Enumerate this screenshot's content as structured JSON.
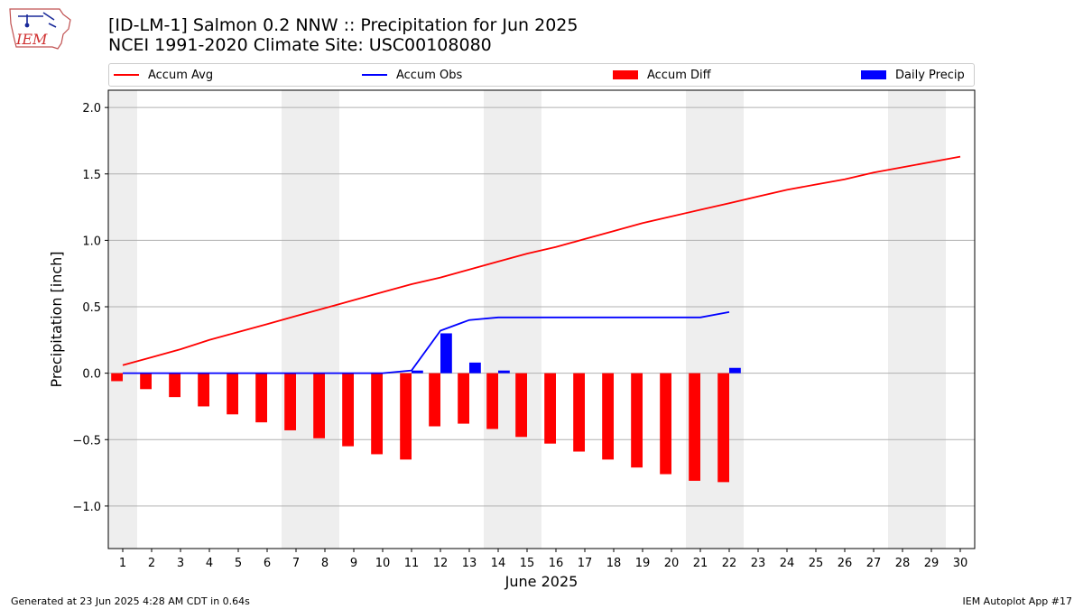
{
  "header": {
    "title_line1": "[ID-LM-1] Salmon 0.2 NNW :: Precipitation for Jun 2025",
    "title_line2": "NCEI 1991-2020 Climate Site: USC00108080",
    "logo_text": "IEM"
  },
  "footer": {
    "left": "Generated at 23 Jun 2025 4:28 AM CDT in 0.64s",
    "right": "IEM Autoplot App #17"
  },
  "colors": {
    "accum_avg": "#ff0000",
    "accum_obs": "#0000ff",
    "accum_diff": "#ff0000",
    "daily_precip": "#0000ff",
    "weekend_shade": "#eeeeee",
    "grid": "#b0b0b0"
  },
  "chart_data": {
    "type": "bar",
    "xlabel": "June 2025",
    "ylabel": "Precipitation [inch]",
    "ylim": [
      -1.32,
      2.13
    ],
    "xlim": [
      0.5,
      30.5
    ],
    "yticks": [
      -1.0,
      -0.5,
      0.0,
      0.5,
      1.0,
      1.5,
      2.0
    ],
    "ytick_labels": [
      "−1.0",
      "−0.5",
      "0.0",
      "0.5",
      "1.0",
      "1.5",
      "2.0"
    ],
    "x": [
      1,
      2,
      3,
      4,
      5,
      6,
      7,
      8,
      9,
      10,
      11,
      12,
      13,
      14,
      15,
      16,
      17,
      18,
      19,
      20,
      21,
      22,
      23,
      24,
      25,
      26,
      27,
      28,
      29,
      30
    ],
    "grid": "horizontal",
    "legend_placement": "top",
    "weekend_ranges": [
      [
        0.5,
        1.5
      ],
      [
        6.5,
        8.5
      ],
      [
        13.5,
        15.5
      ],
      [
        20.5,
        22.5
      ],
      [
        27.5,
        29.5
      ]
    ],
    "series": [
      {
        "name": "Accum Avg",
        "kind": "line",
        "x": [
          1,
          2,
          3,
          4,
          5,
          6,
          7,
          8,
          9,
          10,
          11,
          12,
          13,
          14,
          15,
          16,
          17,
          18,
          19,
          20,
          21,
          22,
          23,
          24,
          25,
          26,
          27,
          28,
          29,
          30
        ],
        "values": [
          0.06,
          0.12,
          0.18,
          0.25,
          0.31,
          0.37,
          0.43,
          0.49,
          0.55,
          0.61,
          0.67,
          0.72,
          0.78,
          0.84,
          0.9,
          0.95,
          1.01,
          1.07,
          1.13,
          1.18,
          1.23,
          1.28,
          1.33,
          1.38,
          1.42,
          1.46,
          1.51,
          1.55,
          1.59,
          1.63
        ]
      },
      {
        "name": "Accum Obs",
        "kind": "line",
        "x": [
          1,
          2,
          3,
          4,
          5,
          6,
          7,
          8,
          9,
          10,
          11,
          12,
          13,
          14,
          15,
          16,
          17,
          18,
          19,
          20,
          21,
          22
        ],
        "values": [
          0.0,
          0.0,
          0.0,
          0.0,
          0.0,
          0.0,
          0.0,
          0.0,
          0.0,
          0.0,
          0.02,
          0.32,
          0.4,
          0.42,
          0.42,
          0.42,
          0.42,
          0.42,
          0.42,
          0.42,
          0.42,
          0.46
        ]
      },
      {
        "name": "Accum Diff",
        "kind": "bar",
        "x": [
          1,
          2,
          3,
          4,
          5,
          6,
          7,
          8,
          9,
          10,
          11,
          12,
          13,
          14,
          15,
          16,
          17,
          18,
          19,
          20,
          21,
          22
        ],
        "values": [
          -0.06,
          -0.12,
          -0.18,
          -0.25,
          -0.31,
          -0.37,
          -0.43,
          -0.49,
          -0.55,
          -0.61,
          -0.65,
          -0.4,
          -0.38,
          -0.42,
          -0.48,
          -0.53,
          -0.59,
          -0.65,
          -0.71,
          -0.76,
          -0.81,
          -0.82
        ]
      },
      {
        "name": "Daily Precip",
        "kind": "bar",
        "x": [
          11,
          12,
          13,
          14,
          22
        ],
        "values": [
          0.02,
          0.3,
          0.08,
          0.02,
          0.04
        ]
      }
    ]
  }
}
